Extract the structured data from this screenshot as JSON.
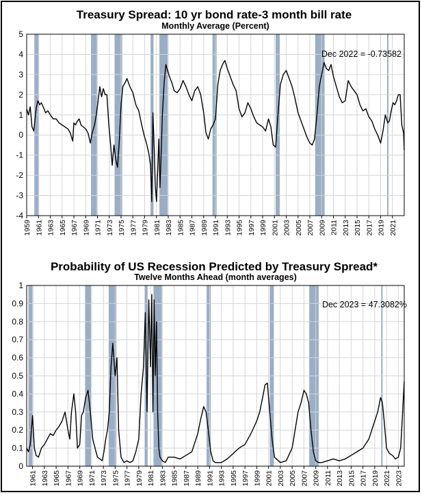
{
  "chart_data": [
    {
      "type": "line",
      "title": "Treasury Spread: 10 yr bond rate-3 month bill rate",
      "subtitle": "Monthly Average (Percent)",
      "xlabel": "",
      "ylabel": "",
      "xlim": [
        1959.0,
        2023.0
      ],
      "ylim": [
        -4,
        5
      ],
      "yticks": [
        5,
        4,
        3,
        2,
        1,
        0,
        -1,
        -2,
        -3,
        -4
      ],
      "xticks": [
        "1959",
        "1961",
        "1963",
        "1965",
        "1967",
        "1969",
        "1971",
        "1973",
        "1975",
        "1977",
        "1979",
        "1981",
        "1983",
        "1985",
        "1987",
        "1989",
        "1991",
        "1993",
        "1995",
        "1997",
        "1999",
        "2001",
        "2003",
        "2005",
        "2007",
        "2009",
        "2011",
        "2013",
        "2015",
        "2017",
        "2019",
        "2021"
      ],
      "grid": true,
      "annotation": "Dec 2022 = -0.73582",
      "recessions": [
        [
          1960.3,
          1961.1
        ],
        [
          1969.9,
          1970.9
        ],
        [
          1973.9,
          1975.2
        ],
        [
          1980.0,
          1980.5
        ],
        [
          1981.5,
          1982.9
        ],
        [
          1990.5,
          1991.2
        ],
        [
          2001.2,
          2001.9
        ],
        [
          2007.9,
          2009.5
        ],
        [
          2020.1,
          2020.3
        ]
      ],
      "series": [
        {
          "color": "#000000",
          "x": [
            1959.0,
            1959.3,
            1959.6,
            1959.9,
            1960.2,
            1960.6,
            1960.9,
            1961.2,
            1961.5,
            1961.8,
            1962.2,
            1962.6,
            1963.0,
            1963.5,
            1964.0,
            1964.5,
            1965.0,
            1965.5,
            1966.0,
            1966.4,
            1966.8,
            1967.0,
            1967.3,
            1967.6,
            1967.9,
            1968.2,
            1968.6,
            1969.0,
            1969.4,
            1969.8,
            1970.1,
            1970.5,
            1970.8,
            1971.1,
            1971.4,
            1971.7,
            1972.0,
            1972.3,
            1972.6,
            1972.9,
            1973.2,
            1973.5,
            1973.8,
            1974.1,
            1974.4,
            1974.7,
            1975.0,
            1975.3,
            1975.7,
            1976.0,
            1976.5,
            1977.0,
            1977.5,
            1978.0,
            1978.5,
            1978.9,
            1979.3,
            1979.7,
            1980.0,
            1980.2,
            1980.4,
            1980.6,
            1980.8,
            1981.0,
            1981.2,
            1981.4,
            1981.6,
            1981.8,
            1982.0,
            1982.3,
            1982.6,
            1982.9,
            1983.2,
            1983.6,
            1984.0,
            1984.5,
            1985.0,
            1985.5,
            1986.0,
            1986.5,
            1987.0,
            1987.5,
            1988.0,
            1988.5,
            1989.0,
            1989.4,
            1989.8,
            1990.2,
            1990.6,
            1991.0,
            1991.4,
            1991.8,
            1992.2,
            1992.6,
            1993.0,
            1993.5,
            1994.0,
            1994.5,
            1995.0,
            1995.5,
            1996.0,
            1996.5,
            1997.0,
            1997.5,
            1998.0,
            1998.5,
            1999.0,
            1999.5,
            2000.0,
            2000.4,
            2000.8,
            2001.2,
            2001.6,
            2002.0,
            2002.5,
            2003.0,
            2003.5,
            2004.0,
            2004.5,
            2005.0,
            2005.5,
            2006.0,
            2006.5,
            2007.0,
            2007.4,
            2007.8,
            2008.2,
            2008.6,
            2009.0,
            2009.4,
            2009.8,
            2010.2,
            2010.6,
            2011.0,
            2011.5,
            2012.0,
            2012.5,
            2013.0,
            2013.5,
            2014.0,
            2014.5,
            2015.0,
            2015.5,
            2016.0,
            2016.5,
            2017.0,
            2017.5,
            2018.0,
            2018.5,
            2019.0,
            2019.4,
            2019.8,
            2020.2,
            2020.5,
            2020.8,
            2021.1,
            2021.4,
            2021.7,
            2022.0,
            2022.3,
            2022.6,
            2022.9,
            2023.0
          ],
          "y": [
            1.3,
            1.0,
            1.4,
            0.4,
            0.2,
            1.3,
            1.7,
            1.5,
            1.6,
            1.4,
            1.1,
            1.2,
            1.0,
            0.8,
            0.8,
            0.6,
            0.5,
            0.4,
            0.3,
            0.1,
            -0.3,
            0.6,
            0.5,
            0.7,
            0.8,
            0.5,
            0.4,
            0.3,
            0.1,
            -0.4,
            0.1,
            0.5,
            1.0,
            1.7,
            2.4,
            1.9,
            2.3,
            2.0,
            2.0,
            0.6,
            -0.4,
            -1.5,
            -0.5,
            -1.2,
            -1.6,
            -0.3,
            1.5,
            2.4,
            2.6,
            2.8,
            2.4,
            2.1,
            1.5,
            1.2,
            0.5,
            0.0,
            -0.4,
            -0.9,
            -1.5,
            -3.3,
            1.1,
            -0.5,
            -2.5,
            -3.3,
            -1.8,
            -0.2,
            -2.6,
            -1.0,
            1.0,
            2.6,
            3.5,
            3.2,
            2.9,
            2.6,
            2.2,
            2.1,
            2.3,
            2.7,
            2.4,
            2.0,
            1.7,
            2.2,
            2.4,
            2.0,
            1.1,
            0.1,
            -0.2,
            0.3,
            0.5,
            0.8,
            2.5,
            3.2,
            3.5,
            3.7,
            3.3,
            2.9,
            2.5,
            2.2,
            1.3,
            0.9,
            1.1,
            1.6,
            1.3,
            0.9,
            0.6,
            0.5,
            0.4,
            0.2,
            0.8,
            0.4,
            -0.5,
            -0.6,
            1.0,
            2.5,
            3.0,
            3.2,
            2.8,
            2.4,
            1.8,
            1.1,
            0.7,
            0.3,
            -0.1,
            -0.4,
            -0.5,
            -0.2,
            1.0,
            2.4,
            3.0,
            3.6,
            3.3,
            3.2,
            3.5,
            2.9,
            2.4,
            1.9,
            1.6,
            1.7,
            2.7,
            2.4,
            2.2,
            2.0,
            1.5,
            1.2,
            1.3,
            0.9,
            0.7,
            0.3,
            0.0,
            -0.4,
            0.2,
            1.0,
            0.6,
            0.7,
            1.2,
            1.6,
            1.5,
            1.7,
            2.0,
            2.0,
            0.5,
            0.1,
            -0.74
          ]
        }
      ]
    },
    {
      "type": "line",
      "title": "Probability of US Recession Predicted by Treasury Spread*",
      "subtitle": "Twelve Months Ahead (month averages)",
      "xlabel": "",
      "ylabel": "",
      "xlim": [
        1960.0,
        2024.0
      ],
      "ylim": [
        0,
        1
      ],
      "yticks": [
        "1",
        "0.9",
        "0.8",
        "0.7",
        "0.6",
        "0.5",
        "0.4",
        "0.3",
        "0.2",
        "0.1",
        "0"
      ],
      "xticks": [
        "1961",
        "1963",
        "1965",
        "1967",
        "1969",
        "1971",
        "1973",
        "1975",
        "1977",
        "1979",
        "1981",
        "1983",
        "1985",
        "1987",
        "1989",
        "1991",
        "1993",
        "1995",
        "1997",
        "1999",
        "2001",
        "2003",
        "2005",
        "2007",
        "2009",
        "2011",
        "2013",
        "2015",
        "2017",
        "2019",
        "2021",
        "2023"
      ],
      "grid": true,
      "annotation": "Dec 2023 = 47.3082%",
      "recessions": [
        [
          1960.3,
          1961.1
        ],
        [
          1969.9,
          1970.9
        ],
        [
          1973.9,
          1975.2
        ],
        [
          1980.0,
          1980.5
        ],
        [
          1981.5,
          1982.9
        ],
        [
          1990.5,
          1991.2
        ],
        [
          2001.2,
          2001.9
        ],
        [
          2007.9,
          2009.5
        ],
        [
          2020.1,
          2020.3
        ]
      ],
      "series": [
        {
          "color": "#000000",
          "x": [
            1960.0,
            1960.3,
            1960.6,
            1961.0,
            1961.3,
            1961.6,
            1962.0,
            1962.5,
            1963.0,
            1963.5,
            1964.0,
            1964.5,
            1965.0,
            1965.5,
            1966.0,
            1966.5,
            1967.0,
            1967.3,
            1967.6,
            1968.0,
            1968.3,
            1968.6,
            1969.0,
            1969.3,
            1969.6,
            1970.0,
            1970.4,
            1970.8,
            1971.2,
            1971.6,
            1972.0,
            1972.4,
            1972.8,
            1973.1,
            1973.4,
            1973.7,
            1974.0,
            1974.3,
            1974.6,
            1975.0,
            1975.3,
            1975.6,
            1976.0,
            1976.5,
            1977.0,
            1977.5,
            1978.0,
            1978.5,
            1979.0,
            1979.4,
            1979.8,
            1980.1,
            1980.4,
            1980.7,
            1981.0,
            1981.2,
            1981.4,
            1981.6,
            1981.8,
            1982.0,
            1982.2,
            1982.4,
            1982.6,
            1983.0,
            1983.5,
            1984.0,
            1985.0,
            1986.0,
            1987.0,
            1988.0,
            1989.0,
            1989.5,
            1990.0,
            1990.4,
            1990.8,
            1991.2,
            1991.6,
            1992.0,
            1993.0,
            1994.0,
            1995.0,
            1996.0,
            1997.0,
            1998.0,
            1999.0,
            1999.5,
            2000.0,
            2000.4,
            2000.8,
            2001.2,
            2001.6,
            2002.0,
            2003.0,
            2004.0,
            2005.0,
            2006.0,
            2006.5,
            2007.0,
            2007.4,
            2007.8,
            2008.2,
            2008.6,
            2009.0,
            2009.5,
            2010.0,
            2011.0,
            2012.0,
            2013.0,
            2014.0,
            2015.0,
            2016.0,
            2017.0,
            2018.0,
            2019.0,
            2019.5,
            2020.0,
            2020.3,
            2020.6,
            2021.0,
            2021.5,
            2022.0,
            2022.5,
            2023.0,
            2023.4,
            2023.7,
            2024.0
          ],
          "y": [
            0.1,
            0.08,
            0.12,
            0.28,
            0.1,
            0.06,
            0.05,
            0.1,
            0.12,
            0.15,
            0.18,
            0.17,
            0.2,
            0.22,
            0.25,
            0.3,
            0.2,
            0.15,
            0.3,
            0.4,
            0.3,
            0.1,
            0.12,
            0.28,
            0.3,
            0.38,
            0.42,
            0.3,
            0.15,
            0.1,
            0.05,
            0.04,
            0.03,
            0.08,
            0.15,
            0.2,
            0.3,
            0.55,
            0.68,
            0.5,
            0.6,
            0.2,
            0.05,
            0.02,
            0.03,
            0.02,
            0.03,
            0.08,
            0.15,
            0.4,
            0.55,
            0.85,
            0.3,
            0.92,
            0.55,
            0.95,
            0.3,
            0.92,
            0.5,
            0.8,
            0.3,
            0.1,
            0.05,
            0.03,
            0.02,
            0.05,
            0.05,
            0.04,
            0.06,
            0.08,
            0.18,
            0.26,
            0.33,
            0.3,
            0.2,
            0.08,
            0.03,
            0.02,
            0.02,
            0.04,
            0.07,
            0.1,
            0.12,
            0.18,
            0.25,
            0.3,
            0.38,
            0.45,
            0.46,
            0.3,
            0.15,
            0.05,
            0.02,
            0.03,
            0.1,
            0.3,
            0.35,
            0.42,
            0.4,
            0.35,
            0.2,
            0.08,
            0.03,
            0.02,
            0.02,
            0.03,
            0.04,
            0.03,
            0.04,
            0.06,
            0.08,
            0.1,
            0.15,
            0.25,
            0.3,
            0.38,
            0.35,
            0.25,
            0.1,
            0.07,
            0.06,
            0.04,
            0.05,
            0.1,
            0.28,
            0.47
          ]
        }
      ]
    }
  ]
}
